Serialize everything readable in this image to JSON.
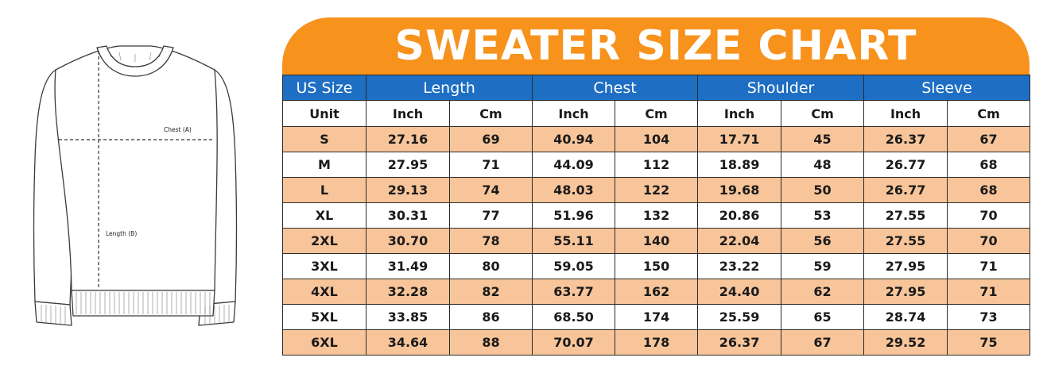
{
  "title": "SWEATER SIZE CHART",
  "colors": {
    "banner": "#f7921d",
    "header": "#1e6fc3",
    "stripe": "#f8c59a"
  },
  "illustration": {
    "icon": "sweater-icon",
    "chest_label": "Chest (A)",
    "length_label": "Length (B)"
  },
  "header": {
    "size": "US Size",
    "groups": [
      "Length",
      "Chest",
      "Shoulder",
      "Sleeve"
    ]
  },
  "units": [
    "Unit",
    "Inch",
    "Cm",
    "Inch",
    "Cm",
    "Inch",
    "Cm",
    "Inch",
    "Cm"
  ],
  "rows": [
    [
      "S",
      "27.16",
      "69",
      "40.94",
      "104",
      "17.71",
      "45",
      "26.37",
      "67"
    ],
    [
      "M",
      "27.95",
      "71",
      "44.09",
      "112",
      "18.89",
      "48",
      "26.77",
      "68"
    ],
    [
      "L",
      "29.13",
      "74",
      "48.03",
      "122",
      "19.68",
      "50",
      "26.77",
      "68"
    ],
    [
      "XL",
      "30.31",
      "77",
      "51.96",
      "132",
      "20.86",
      "53",
      "27.55",
      "70"
    ],
    [
      "2XL",
      "30.70",
      "78",
      "55.11",
      "140",
      "22.04",
      "56",
      "27.55",
      "70"
    ],
    [
      "3XL",
      "31.49",
      "80",
      "59.05",
      "150",
      "23.22",
      "59",
      "27.95",
      "71"
    ],
    [
      "4XL",
      "32.28",
      "82",
      "63.77",
      "162",
      "24.40",
      "62",
      "27.95",
      "71"
    ],
    [
      "5XL",
      "33.85",
      "86",
      "68.50",
      "174",
      "25.59",
      "65",
      "28.74",
      "73"
    ],
    [
      "6XL",
      "34.64",
      "88",
      "70.07",
      "178",
      "26.37",
      "67",
      "29.52",
      "75"
    ]
  ]
}
